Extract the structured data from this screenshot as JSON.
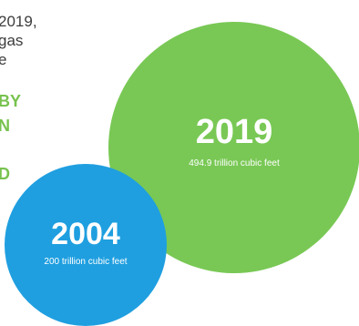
{
  "intro": {
    "lines": [
      "2019,",
      "gas",
      "e"
    ],
    "highlight": [
      "BY",
      "N",
      "D"
    ]
  },
  "circles": [
    {
      "year": "2019",
      "amount": "494.9 trillion cubic feet",
      "color": "#79c855"
    },
    {
      "year": "2004",
      "amount": "200 trillion cubic feet",
      "color": "#1f9fe0"
    }
  ]
}
